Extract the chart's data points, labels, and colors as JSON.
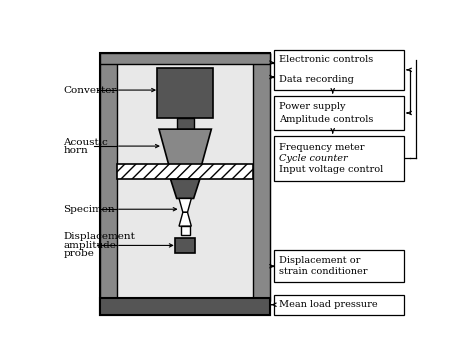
{
  "bg_color": "#ffffff",
  "dark_gray": "#555555",
  "mid_gray": "#888888",
  "light_gray": "#c0c0c0",
  "very_light_gray": "#d8d8d8",
  "black": "#000000",
  "figsize": [
    4.74,
    3.64
  ],
  "dpi": 100,
  "box_texts": {
    "electronic": "Electronic controls\nData recording",
    "power": "Power supply\nAmplitude controls",
    "frequency": "Frequency meter\nCycle counter\nInput voltage control",
    "displacement_box": "Displacement or\nstrain conditioner",
    "mean_load": "Mean load pressure"
  },
  "labels": {
    "converter": "Converter",
    "acoustic": "Acoustic\nhorn",
    "specimen": "Specimen",
    "probe": "Displacement\namplitude\nprobe"
  }
}
